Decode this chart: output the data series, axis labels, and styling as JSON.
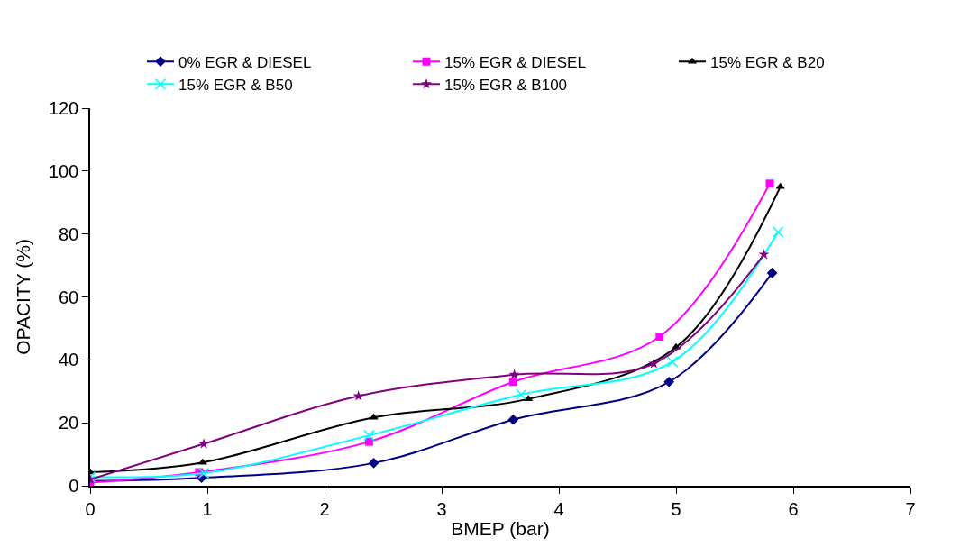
{
  "chart_data": {
    "type": "line",
    "xlabel": "BMEP (bar)",
    "ylabel": "OPACITY (%)",
    "xlim": [
      0,
      7
    ],
    "xticks": [
      0,
      1,
      2,
      3,
      4,
      5,
      6,
      7
    ],
    "ylim": [
      0,
      120
    ],
    "yticks": [
      0,
      20,
      40,
      60,
      80,
      100,
      120
    ],
    "legend": "top",
    "series": [
      {
        "name": "0% EGR & DIESEL",
        "color": "#000080",
        "marker": "diamond",
        "x": [
          0,
          0.95,
          2.42,
          3.61,
          4.94,
          5.82
        ],
        "values": [
          1.5,
          2.5,
          7.2,
          21,
          33,
          67.6
        ]
      },
      {
        "name": "15% EGR & DIESEL",
        "color": "#ff00ff",
        "marker": "square",
        "x": [
          0,
          0.93,
          2.38,
          3.61,
          4.86,
          5.8
        ],
        "values": [
          1,
          4.3,
          14,
          33,
          47.4,
          96
        ]
      },
      {
        "name": "15% EGR & B20",
        "color": "#000000",
        "marker": "triangle",
        "x": [
          0,
          0.96,
          2.42,
          3.74,
          5.0,
          5.89
        ],
        "values": [
          4.3,
          7.4,
          21.7,
          27.6,
          44,
          95
        ]
      },
      {
        "name": "15% EGR & B50",
        "color": "#00ffff",
        "marker": "cross",
        "x": [
          0,
          0.97,
          2.38,
          3.68,
          4.97,
          5.87
        ],
        "values": [
          2.8,
          4,
          16,
          29,
          39.4,
          80.6
        ]
      },
      {
        "name": "15% EGR & B100",
        "color": "#800080",
        "marker": "star",
        "x": [
          0,
          0.97,
          2.29,
          3.62,
          4.81,
          5.75
        ],
        "values": [
          2,
          13.3,
          28.5,
          35.3,
          38.8,
          73.5
        ]
      }
    ]
  }
}
